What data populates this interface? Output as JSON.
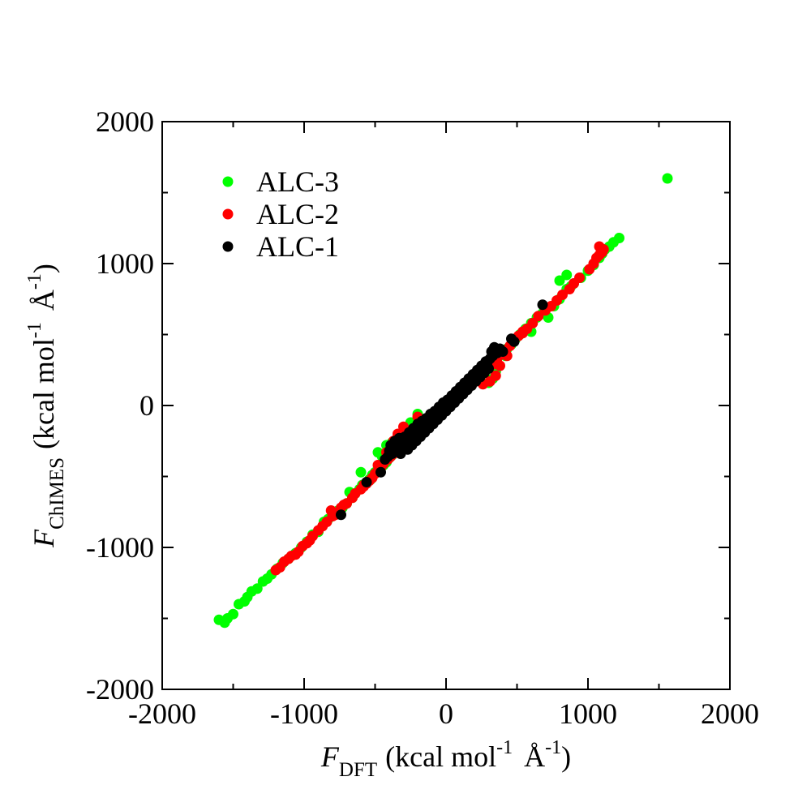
{
  "chart_data": {
    "type": "scatter",
    "title": "",
    "xlabel": {
      "symbol": "F",
      "subscript": "DFT",
      "units_prefix": "(kcal mol",
      "exp1": "-1",
      "angstrom": "Å",
      "exp2": "-1",
      "units_suffix": ")"
    },
    "ylabel": {
      "symbol": "F",
      "subscript": "ChIMES",
      "units_prefix": "(kcal mol",
      "exp1": "-1",
      "angstrom": "Å",
      "exp2": "-1",
      "units_suffix": ")"
    },
    "xlim": [
      -2000,
      2000
    ],
    "ylim": [
      -2000,
      2000
    ],
    "xticks": [
      -2000,
      -1000,
      0,
      1000,
      2000
    ],
    "yticks": [
      -2000,
      -1000,
      0,
      1000,
      2000
    ],
    "xtick_labels": [
      "-2000",
      "-1000",
      "0",
      "1000",
      "2000"
    ],
    "ytick_labels": [
      "-2000",
      "-1000",
      "0",
      "1000",
      "2000"
    ],
    "minor_ticks_per_interval": 2,
    "grid": false,
    "legend_position": "top-left",
    "series": [
      {
        "name": "ALC-3",
        "color": "#00ff00",
        "points": [
          [
            -1600,
            -1510
          ],
          [
            -1560,
            -1530
          ],
          [
            -1540,
            -1500
          ],
          [
            -1500,
            -1470
          ],
          [
            -1460,
            -1400
          ],
          [
            -1420,
            -1380
          ],
          [
            -1400,
            -1350
          ],
          [
            -1370,
            -1310
          ],
          [
            -1330,
            -1290
          ],
          [
            -1290,
            -1240
          ],
          [
            -1260,
            -1220
          ],
          [
            -1230,
            -1190
          ],
          [
            -1190,
            -1150
          ],
          [
            -1150,
            -1110
          ],
          [
            -1110,
            -1080
          ],
          [
            -1060,
            -1040
          ],
          [
            -1020,
            -1000
          ],
          [
            -980,
            -960
          ],
          [
            -940,
            -910
          ],
          [
            -900,
            -890
          ],
          [
            -860,
            -820
          ],
          [
            -830,
            -800
          ],
          [
            -790,
            -760
          ],
          [
            -760,
            -740
          ],
          [
            -730,
            -720
          ],
          [
            -700,
            -690
          ],
          [
            -660,
            -650
          ],
          [
            -640,
            -620
          ],
          [
            -610,
            -590
          ],
          [
            -590,
            -560
          ],
          [
            -560,
            -540
          ],
          [
            -540,
            -520
          ],
          [
            -520,
            -490
          ],
          [
            -500,
            -470
          ],
          [
            -460,
            -440
          ],
          [
            -440,
            -420
          ],
          [
            -420,
            -400
          ],
          [
            -400,
            -370
          ],
          [
            -380,
            -350
          ],
          [
            -360,
            -320
          ],
          [
            -340,
            -300
          ],
          [
            -320,
            -280
          ],
          [
            -300,
            -260
          ],
          [
            -270,
            -230
          ],
          [
            -250,
            -210
          ],
          [
            -220,
            -190
          ],
          [
            -200,
            -160
          ],
          [
            -170,
            -140
          ],
          [
            -140,
            -120
          ],
          [
            -110,
            -90
          ],
          [
            -80,
            -60
          ],
          [
            -50,
            -30
          ],
          [
            -20,
            -10
          ],
          [
            10,
            20
          ],
          [
            40,
            50
          ],
          [
            70,
            80
          ],
          [
            100,
            100
          ],
          [
            130,
            120
          ],
          [
            160,
            150
          ],
          [
            190,
            170
          ],
          [
            220,
            200
          ],
          [
            250,
            220
          ],
          [
            280,
            250
          ],
          [
            310,
            290
          ],
          [
            340,
            320
          ],
          [
            370,
            350
          ],
          [
            400,
            370
          ],
          [
            430,
            400
          ],
          [
            460,
            430
          ],
          [
            490,
            470
          ],
          [
            520,
            500
          ],
          [
            560,
            540
          ],
          [
            600,
            580
          ],
          [
            640,
            620
          ],
          [
            680,
            650
          ],
          [
            720,
            620
          ],
          [
            760,
            700
          ],
          [
            800,
            750
          ],
          [
            850,
            820
          ],
          [
            880,
            840
          ],
          [
            900,
            860
          ],
          [
            950,
            900
          ],
          [
            1000,
            950
          ],
          [
            1040,
            990
          ],
          [
            1080,
            1040
          ],
          [
            1100,
            1070
          ],
          [
            1120,
            1100
          ],
          [
            1150,
            1120
          ],
          [
            1180,
            1150
          ],
          [
            1220,
            1180
          ],
          [
            1560,
            1600
          ],
          [
            -600,
            -470
          ],
          [
            -480,
            -330
          ],
          [
            -420,
            -280
          ],
          [
            -450,
            -360
          ],
          [
            300,
            160
          ],
          [
            330,
            190
          ],
          [
            350,
            240
          ],
          [
            -250,
            -120
          ],
          [
            -200,
            -60
          ],
          [
            -380,
            -260
          ],
          [
            420,
            350
          ],
          [
            600,
            520
          ],
          [
            -530,
            -520
          ],
          [
            -680,
            -610
          ],
          [
            800,
            880
          ],
          [
            850,
            920
          ]
        ]
      },
      {
        "name": "ALC-2",
        "color": "#ff0000",
        "points": [
          [
            -1200,
            -1160
          ],
          [
            -1170,
            -1140
          ],
          [
            -1140,
            -1100
          ],
          [
            -1110,
            -1080
          ],
          [
            -1090,
            -1060
          ],
          [
            -1060,
            -1050
          ],
          [
            -1040,
            -1030
          ],
          [
            -1010,
            -990
          ],
          [
            -980,
            -970
          ],
          [
            -960,
            -950
          ],
          [
            -940,
            -920
          ],
          [
            -900,
            -880
          ],
          [
            -870,
            -850
          ],
          [
            -840,
            -820
          ],
          [
            -800,
            -780
          ],
          [
            -780,
            -770
          ],
          [
            -760,
            -750
          ],
          [
            -740,
            -720
          ],
          [
            -720,
            -700
          ],
          [
            -700,
            -690
          ],
          [
            -660,
            -650
          ],
          [
            -640,
            -620
          ],
          [
            -600,
            -590
          ],
          [
            -580,
            -570
          ],
          [
            -560,
            -550
          ],
          [
            -540,
            -530
          ],
          [
            -520,
            -510
          ],
          [
            -500,
            -480
          ],
          [
            -480,
            -460
          ],
          [
            -460,
            -440
          ],
          [
            -440,
            -410
          ],
          [
            -410,
            -380
          ],
          [
            -390,
            -360
          ],
          [
            -370,
            -340
          ],
          [
            -350,
            -320
          ],
          [
            -330,
            -300
          ],
          [
            -310,
            -280
          ],
          [
            -290,
            -260
          ],
          [
            -270,
            -240
          ],
          [
            -250,
            -210
          ],
          [
            -230,
            -190
          ],
          [
            -210,
            -170
          ],
          [
            -190,
            -150
          ],
          [
            -160,
            -130
          ],
          [
            -140,
            -110
          ],
          [
            -120,
            -90
          ],
          [
            -90,
            -70
          ],
          [
            -60,
            -40
          ],
          [
            -30,
            -20
          ],
          [
            0,
            0
          ],
          [
            30,
            20
          ],
          [
            60,
            50
          ],
          [
            90,
            70
          ],
          [
            120,
            100
          ],
          [
            150,
            130
          ],
          [
            180,
            160
          ],
          [
            210,
            180
          ],
          [
            240,
            200
          ],
          [
            270,
            230
          ],
          [
            300,
            260
          ],
          [
            330,
            290
          ],
          [
            360,
            330
          ],
          [
            390,
            360
          ],
          [
            420,
            390
          ],
          [
            450,
            420
          ],
          [
            480,
            460
          ],
          [
            510,
            490
          ],
          [
            540,
            510
          ],
          [
            570,
            540
          ],
          [
            610,
            580
          ],
          [
            650,
            630
          ],
          [
            700,
            670
          ],
          [
            740,
            700
          ],
          [
            780,
            740
          ],
          [
            820,
            780
          ],
          [
            870,
            820
          ],
          [
            900,
            860
          ],
          [
            940,
            900
          ],
          [
            1010,
            960
          ],
          [
            1040,
            1000
          ],
          [
            1060,
            1040
          ],
          [
            1080,
            1060
          ],
          [
            1100,
            1080
          ],
          [
            1110,
            1100
          ],
          [
            1080,
            1120
          ],
          [
            -340,
            -200
          ],
          [
            -300,
            -150
          ],
          [
            -370,
            -250
          ],
          [
            310,
            170
          ],
          [
            350,
            210
          ],
          [
            380,
            280
          ],
          [
            430,
            350
          ],
          [
            -420,
            -330
          ],
          [
            -480,
            -420
          ],
          [
            540,
            520
          ],
          [
            -200,
            -80
          ],
          [
            260,
            150
          ],
          [
            -580,
            -560
          ],
          [
            -810,
            -740
          ]
        ]
      },
      {
        "name": "ALC-1",
        "color": "#000000",
        "points": [
          [
            -740,
            -770
          ],
          [
            -560,
            -540
          ],
          [
            -460,
            -470
          ],
          [
            -430,
            -380
          ],
          [
            -410,
            -360
          ],
          [
            -400,
            -320
          ],
          [
            -390,
            -280
          ],
          [
            -380,
            -340
          ],
          [
            -370,
            -300
          ],
          [
            -360,
            -250
          ],
          [
            -350,
            -320
          ],
          [
            -340,
            -290
          ],
          [
            -330,
            -230
          ],
          [
            -320,
            -340
          ],
          [
            -310,
            -260
          ],
          [
            -300,
            -300
          ],
          [
            -290,
            -220
          ],
          [
            -280,
            -270
          ],
          [
            -270,
            -310
          ],
          [
            -260,
            -190
          ],
          [
            -250,
            -240
          ],
          [
            -240,
            -280
          ],
          [
            -230,
            -160
          ],
          [
            -220,
            -210
          ],
          [
            -210,
            -250
          ],
          [
            -200,
            -130
          ],
          [
            -190,
            -180
          ],
          [
            -180,
            -220
          ],
          [
            -170,
            -110
          ],
          [
            -160,
            -150
          ],
          [
            -150,
            -190
          ],
          [
            -140,
            -90
          ],
          [
            -130,
            -120
          ],
          [
            -120,
            -160
          ],
          [
            -110,
            -60
          ],
          [
            -100,
            -90
          ],
          [
            -90,
            -130
          ],
          [
            -80,
            -40
          ],
          [
            -70,
            -60
          ],
          [
            -60,
            -100
          ],
          [
            -50,
            -10
          ],
          [
            -40,
            -30
          ],
          [
            -30,
            -70
          ],
          [
            -20,
            20
          ],
          [
            -10,
            0
          ],
          [
            0,
            -40
          ],
          [
            10,
            40
          ],
          [
            20,
            30
          ],
          [
            30,
            -10
          ],
          [
            40,
            70
          ],
          [
            50,
            60
          ],
          [
            60,
            20
          ],
          [
            70,
            100
          ],
          [
            80,
            90
          ],
          [
            90,
            50
          ],
          [
            100,
            130
          ],
          [
            110,
            120
          ],
          [
            120,
            80
          ],
          [
            130,
            160
          ],
          [
            140,
            150
          ],
          [
            150,
            110
          ],
          [
            160,
            190
          ],
          [
            170,
            180
          ],
          [
            180,
            140
          ],
          [
            190,
            220
          ],
          [
            200,
            210
          ],
          [
            210,
            170
          ],
          [
            220,
            250
          ],
          [
            230,
            240
          ],
          [
            240,
            200
          ],
          [
            250,
            280
          ],
          [
            260,
            270
          ],
          [
            270,
            230
          ],
          [
            280,
            310
          ],
          [
            290,
            300
          ],
          [
            300,
            260
          ],
          [
            310,
            330
          ],
          [
            320,
            380
          ],
          [
            330,
            350
          ],
          [
            340,
            410
          ],
          [
            360,
            370
          ],
          [
            380,
            400
          ],
          [
            400,
            380
          ],
          [
            460,
            470
          ],
          [
            480,
            450
          ],
          [
            680,
            710
          ]
        ]
      }
    ]
  }
}
